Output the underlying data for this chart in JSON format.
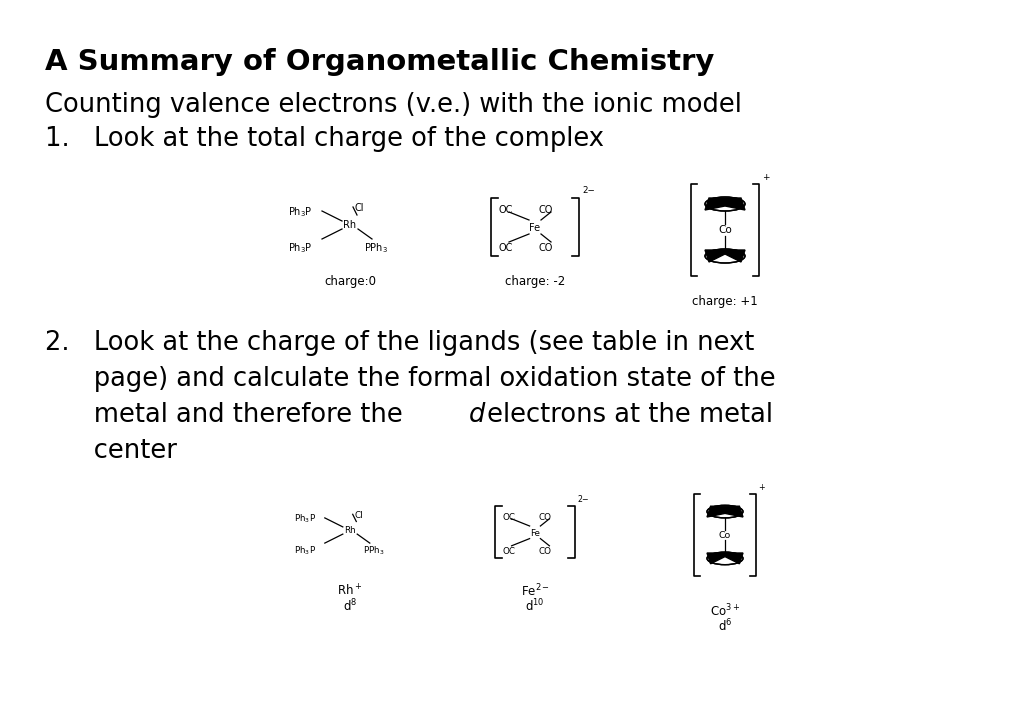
{
  "title_bold": "A Summary of Organometallic Chemistry",
  "subtitle": "Counting valence electrons (v.e.) with the ionic model",
  "point1": "1.   Look at the total charge of the complex",
  "p2_a": "2.   Look at the charge of the ligands (see table in next",
  "p2_b": "      page) and calculate the formal oxidation state of the",
  "p2_c_pre": "      metal and therefore the ",
  "p2_c_italic": "d",
  "p2_c_post": " electrons at the metal",
  "p2_d": "      center",
  "charge1": "charge:0",
  "charge2": "charge: -2",
  "charge3": "charge: +1",
  "bg_color": "#ffffff",
  "text_color": "#000000",
  "title_fontsize": 21,
  "body_fontsize": 18.5
}
